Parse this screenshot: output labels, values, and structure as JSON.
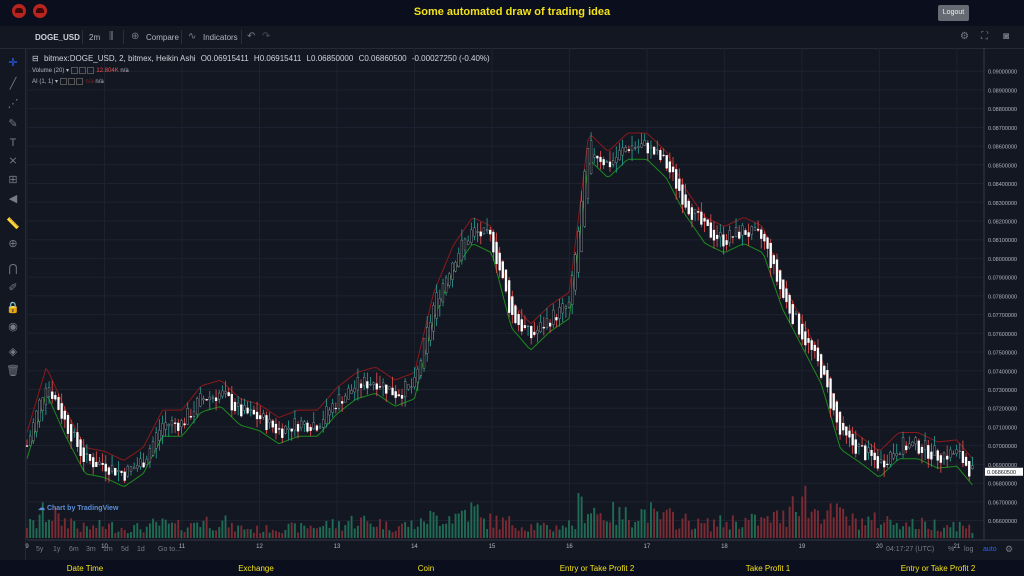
{
  "app": {
    "title": "Some automated draw of trading idea",
    "logout_label": "Logout",
    "logo_icons": [
      "bull-logo-icon",
      "bull-logo-icon"
    ]
  },
  "toolbar": {
    "symbol": "DOGE_USD",
    "interval": "2m",
    "compare_label": "Compare",
    "indicators_label": "Indicators"
  },
  "legend": {
    "main": {
      "title": "bitmex:DOGE_USD, 2, bitmex, Heikin Ashi",
      "open": "O0.06915411",
      "high": "H0.06915411",
      "low": "L0.06850000",
      "close": "C0.06860500",
      "change": "-0.00027250 (-0.40%)"
    },
    "volume": {
      "label": "Volume (20)",
      "value": "12.804K",
      "ma": "n/a"
    },
    "ai": {
      "label": "AI (1, 1)",
      "value1": "n/a",
      "value2": "n/a"
    }
  },
  "watermark": "Chart by TradingView",
  "bottom_bar": {
    "ranges": [
      "5y",
      "1y",
      "6m",
      "3m",
      "1m",
      "5d",
      "1d"
    ],
    "goto_label": "Go to...",
    "clock": "04:17:27 (UTC)",
    "percent_label": "%",
    "log_label": "log",
    "auto_label": "auto"
  },
  "footer": {
    "items": [
      "Date Time",
      "Exchange",
      "Coin",
      "Entry or Take Profit 2",
      "Take Profit 1",
      "Entry or Take Profit 2"
    ]
  },
  "colors": {
    "up": "#26a69a",
    "down": "#ef5350",
    "band_upper": "#8b1a1a",
    "band_lower": "#1d8a1d",
    "vol_up": "#1f6b54",
    "vol_down": "#7a2b33",
    "title_yellow": "#f2e21a",
    "last_price_bg": "#ffffff"
  },
  "chart_data": {
    "type": "candlestick",
    "x_tick_labels": [
      "9",
      "10",
      "11",
      "12",
      "13",
      "14",
      "15",
      "16",
      "17",
      "18",
      "19",
      "20",
      "21"
    ],
    "y_tick_labels": [
      "0.06600000",
      "0.06700000",
      "0.06800000",
      "0.06900000",
      "0.07000000",
      "0.07100000",
      "0.07200000",
      "0.07300000",
      "0.07400000",
      "0.07500000",
      "0.07600000",
      "0.07700000",
      "0.07800000",
      "0.07900000",
      "0.08000000",
      "0.08100000",
      "0.08200000",
      "0.08300000",
      "0.08400000",
      "0.08500000",
      "0.08600000",
      "0.08700000",
      "0.08800000",
      "0.08900000",
      "0.09000000"
    ],
    "ylim": [
      0.0656,
      0.0906
    ],
    "last_price": 0.068605,
    "last_price_label": "0.06860500",
    "series": [
      {
        "name": "DOGE_USD",
        "x": [
          9,
          9.25,
          9.5,
          9.75,
          10,
          10.25,
          10.5,
          10.75,
          11,
          11.25,
          11.5,
          11.75,
          12,
          12.25,
          12.5,
          12.75,
          13,
          13.25,
          13.5,
          13.75,
          14,
          14.25,
          14.5,
          14.75,
          15,
          15.25,
          15.5,
          15.75,
          16,
          16.25,
          16.5,
          16.75,
          17,
          17.25,
          17.5,
          17.75,
          18,
          18.25,
          18.5,
          18.75,
          19,
          19.25,
          19.5,
          19.75,
          20,
          20.25,
          20.5,
          20.75,
          21,
          21.2
        ],
        "close": [
          0.07,
          0.0735,
          0.0712,
          0.0692,
          0.069,
          0.0685,
          0.0692,
          0.0712,
          0.0712,
          0.0725,
          0.0728,
          0.0718,
          0.0715,
          0.0708,
          0.0712,
          0.0712,
          0.0724,
          0.0732,
          0.0735,
          0.0728,
          0.0732,
          0.0775,
          0.08,
          0.0815,
          0.081,
          0.077,
          0.0758,
          0.0768,
          0.0775,
          0.086,
          0.085,
          0.086,
          0.086,
          0.085,
          0.083,
          0.0815,
          0.081,
          0.0815,
          0.081,
          0.078,
          0.076,
          0.074,
          0.0705,
          0.0698,
          0.069,
          0.07,
          0.07,
          0.0695,
          0.0696,
          0.0686
        ]
      }
    ],
    "volume": {
      "x_range": [
        9,
        21.2
      ],
      "values": [
        0.4,
        0.7,
        0.5,
        0.3,
        0.35,
        0.3,
        0.3,
        0.4,
        0.35,
        0.5,
        0.45,
        0.3,
        0.25,
        0.3,
        0.3,
        0.35,
        0.4,
        0.5,
        0.45,
        0.35,
        0.4,
        0.6,
        0.65,
        0.8,
        0.5,
        0.45,
        0.35,
        0.3,
        0.4,
        0.9,
        0.7,
        0.65,
        0.75,
        0.6,
        0.5,
        0.4,
        0.45,
        0.5,
        0.5,
        0.6,
        1.2,
        0.8,
        0.7,
        0.5,
        0.5,
        0.5,
        0.4,
        0.4,
        0.4,
        0.3
      ]
    }
  }
}
